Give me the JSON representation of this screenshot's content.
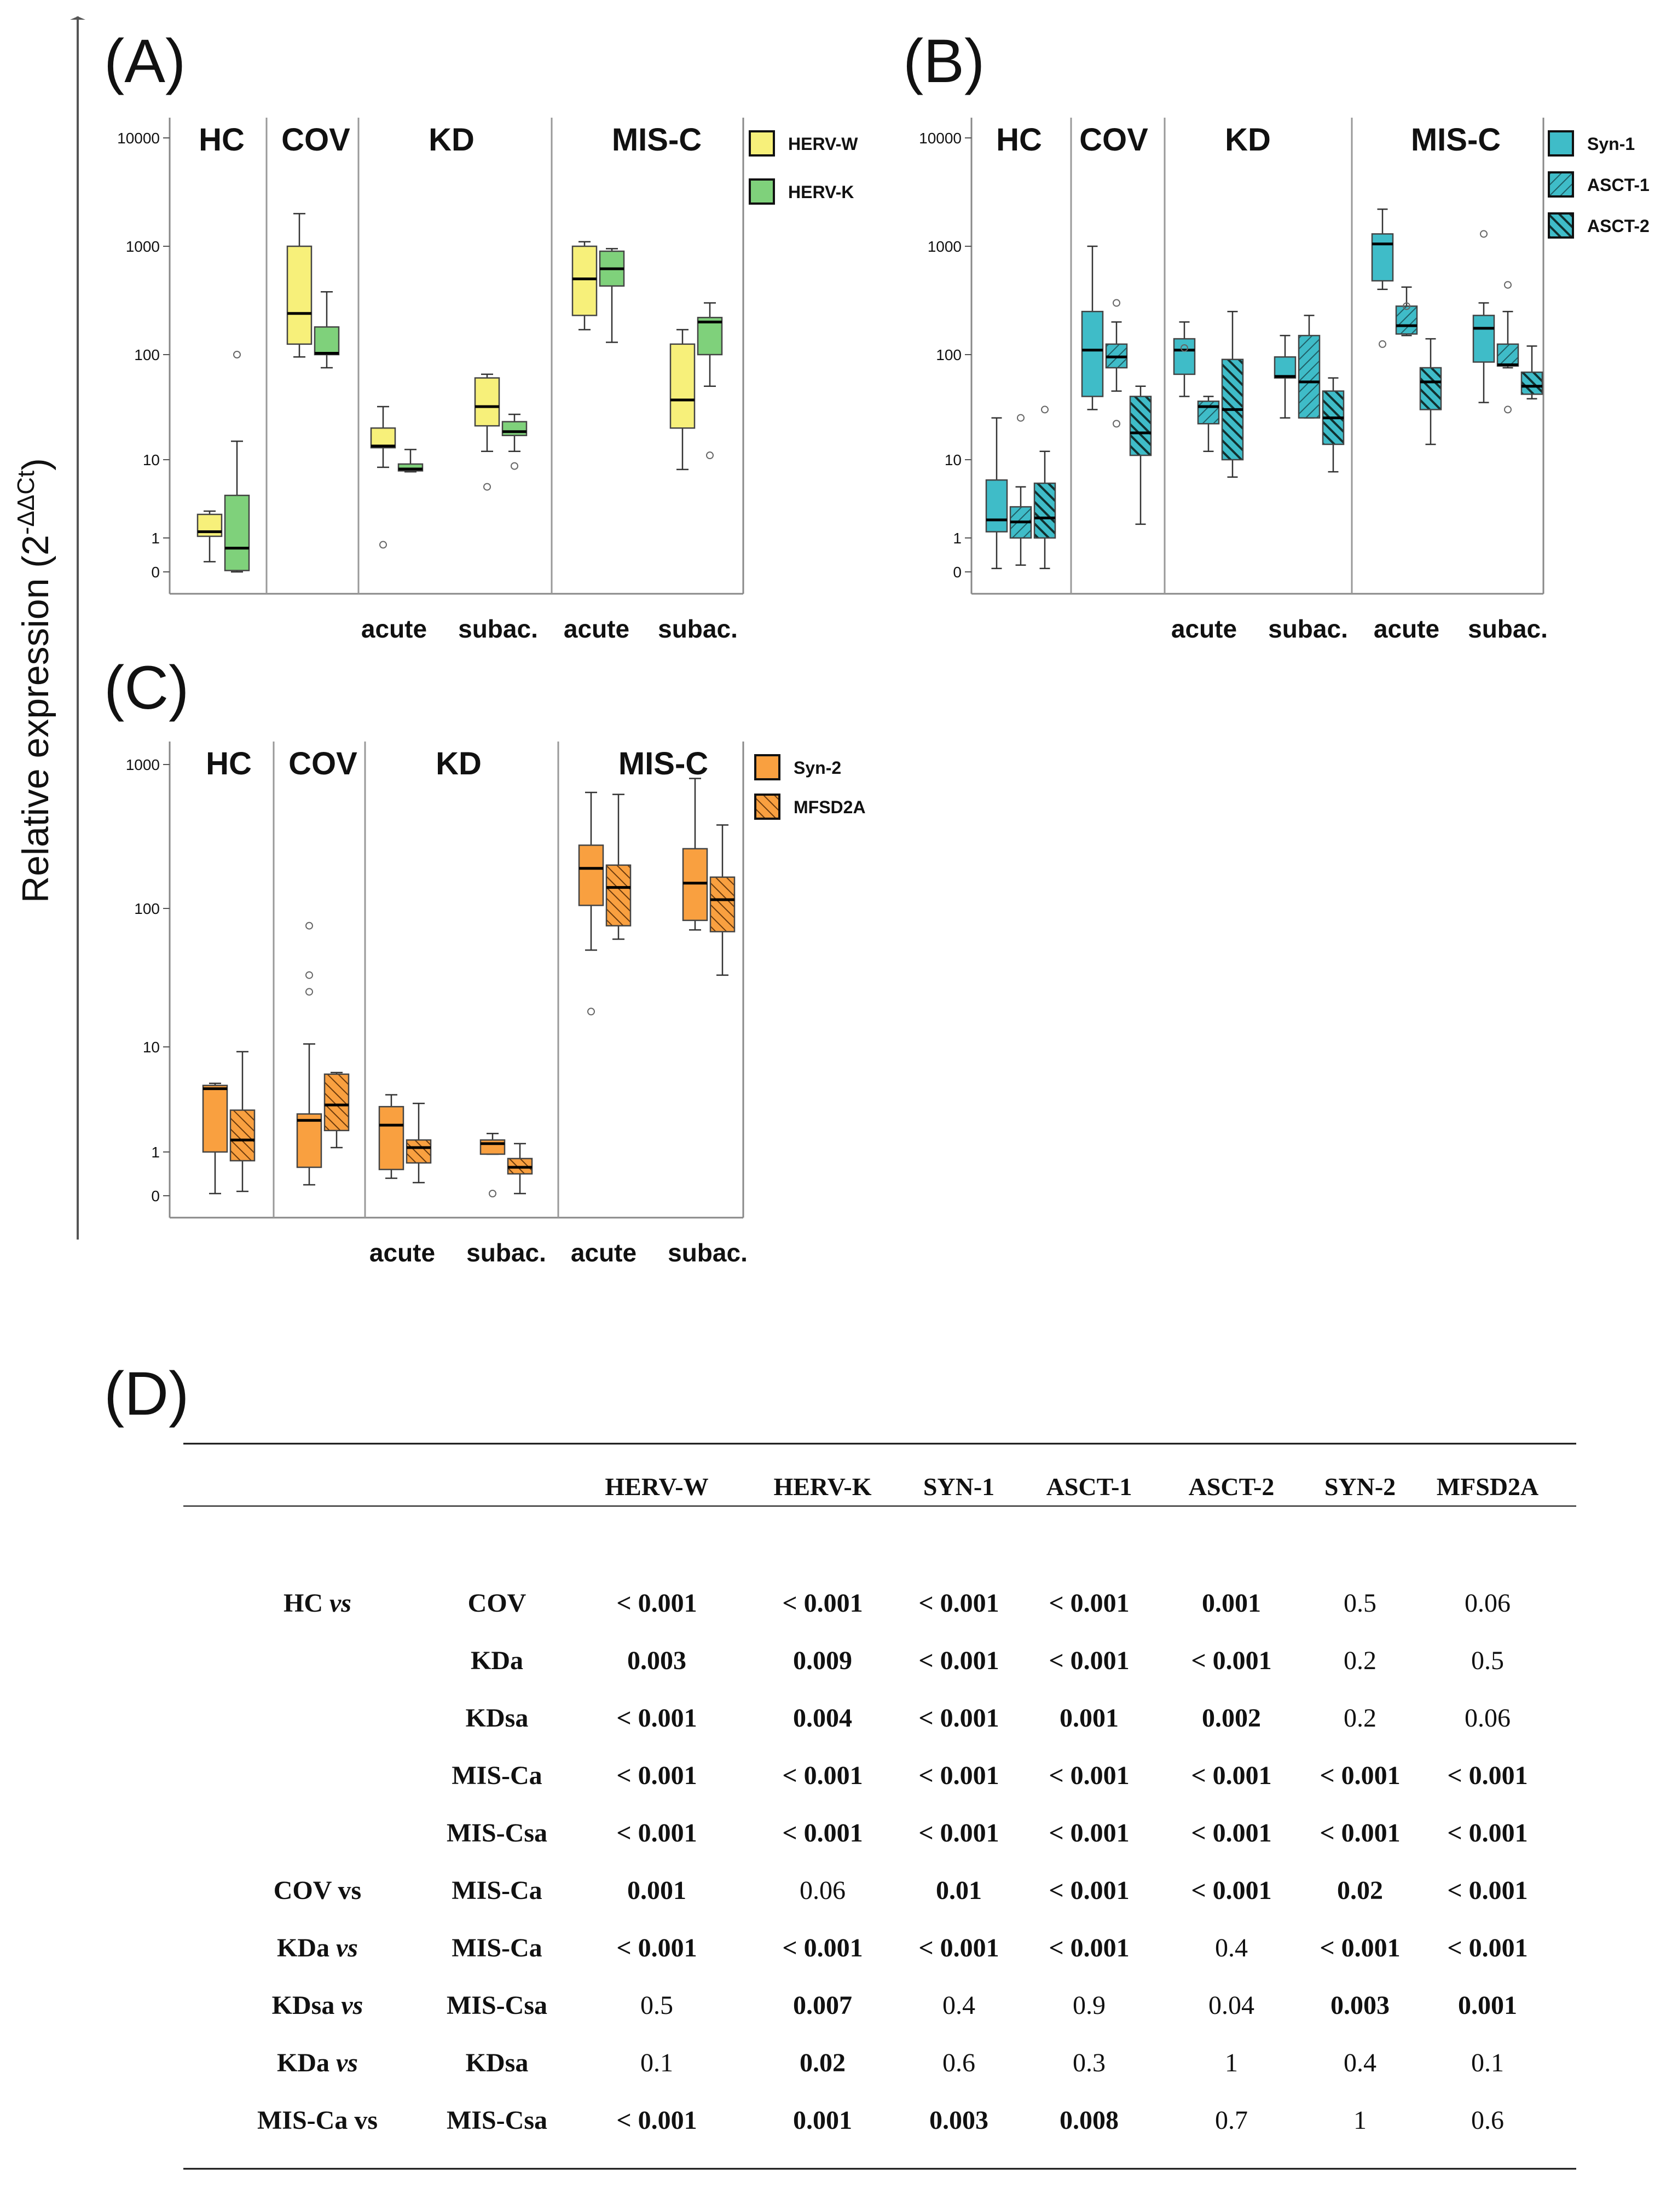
{
  "ylabel": "Relative expression (2",
  "ylabel_sup": "-ΔΔCt",
  "chart_data": [
    {
      "panel": "(A)",
      "type": "box",
      "y_scale": "log",
      "yticks": [
        "0",
        "1",
        "10",
        "100",
        "1000",
        "10000"
      ],
      "groups": [
        "HC",
        "COV",
        "KD",
        "MIS-C"
      ],
      "subgroups": [
        "acute",
        "subac.",
        "acute",
        "subac."
      ],
      "legend": [
        {
          "name": "HERV-W",
          "color": "#f7f07a",
          "pattern": "solid"
        },
        {
          "name": "HERV-K",
          "color": "#7fd17b",
          "pattern": "solid"
        }
      ],
      "boxes": [
        {
          "category": "HC",
          "series": "HERV-W",
          "min": 0.3,
          "q1": 1.05,
          "median": 1.2,
          "q3": 2.0,
          "max": 2.2,
          "outliers": []
        },
        {
          "category": "HC",
          "series": "HERV-K",
          "min": 0.02,
          "q1": 0.04,
          "median": 0.7,
          "q3": 3.5,
          "max": 15,
          "outliers": [
            100
          ]
        },
        {
          "category": "COV",
          "series": "HERV-W",
          "min": 95,
          "q1": 125,
          "median": 240,
          "q3": 1000,
          "max": 2000,
          "outliers": []
        },
        {
          "category": "COV",
          "series": "HERV-K",
          "min": 75,
          "q1": 100,
          "median": 103,
          "q3": 180,
          "max": 380,
          "outliers": []
        },
        {
          "category": "KD acute",
          "series": "HERV-W",
          "min": 8,
          "q1": 13,
          "median": 13.5,
          "q3": 20,
          "max": 32,
          "outliers": [
            0.8
          ]
        },
        {
          "category": "KD acute",
          "series": "HERV-K",
          "min": 7,
          "q1": 7.2,
          "median": 7.6,
          "q3": 8.8,
          "max": 12.5,
          "outliers": []
        },
        {
          "category": "KD subac.",
          "series": "HERV-W",
          "min": 12,
          "q1": 21,
          "median": 32,
          "q3": 60,
          "max": 65,
          "outliers": [
            4.5
          ]
        },
        {
          "category": "KD subac.",
          "series": "HERV-K",
          "min": 12,
          "q1": 17,
          "median": 18.5,
          "q3": 23,
          "max": 27,
          "outliers": [
            8.3
          ]
        },
        {
          "category": "MIS-C acute",
          "series": "HERV-W",
          "min": 170,
          "q1": 230,
          "median": 500,
          "q3": 1000,
          "max": 1100,
          "outliers": []
        },
        {
          "category": "MIS-C acute",
          "series": "HERV-K",
          "min": 130,
          "q1": 430,
          "median": 620,
          "q3": 900,
          "max": 950,
          "outliers": []
        },
        {
          "category": "MIS-C subac.",
          "series": "HERV-W",
          "min": 7.5,
          "q1": 20,
          "median": 37,
          "q3": 125,
          "max": 170,
          "outliers": []
        },
        {
          "category": "MIS-C subac.",
          "series": "HERV-K",
          "min": 50,
          "q1": 100,
          "median": 200,
          "q3": 220,
          "max": 300,
          "outliers": [
            11
          ]
        }
      ]
    },
    {
      "panel": "(B)",
      "type": "box",
      "y_scale": "log",
      "yticks": [
        "0",
        "1",
        "10",
        "100",
        "1000",
        "10000"
      ],
      "groups": [
        "HC",
        "COV",
        "KD",
        "MIS-C"
      ],
      "subgroups": [
        "acute",
        "subac.",
        "acute",
        "subac."
      ],
      "legend": [
        {
          "name": "Syn-1",
          "color": "#3fbcc8",
          "pattern": "solid"
        },
        {
          "name": "ASCT-1",
          "color": "#3fbcc8",
          "pattern": "light-hatch"
        },
        {
          "name": "ASCT-2",
          "color": "#3fbcc8",
          "pattern": "dark-hatch"
        }
      ],
      "boxes": [
        {
          "category": "HC",
          "series": "Syn-1",
          "min": 0.1,
          "q1": 1.2,
          "median": 1.7,
          "q3": 5.5,
          "max": 25,
          "outliers": []
        },
        {
          "category": "HC",
          "series": "ASCT-1",
          "min": 0.2,
          "q1": 1.0,
          "median": 1.6,
          "q3": 2.5,
          "max": 4.5,
          "outliers": [
            25
          ]
        },
        {
          "category": "HC",
          "series": "ASCT-2",
          "min": 0.1,
          "q1": 1.0,
          "median": 1.8,
          "q3": 5.0,
          "max": 12,
          "outliers": [
            30
          ]
        },
        {
          "category": "COV",
          "series": "Syn-1",
          "min": 30,
          "q1": 40,
          "median": 110,
          "q3": 250,
          "max": 1000,
          "outliers": []
        },
        {
          "category": "COV",
          "series": "ASCT-1",
          "min": 45,
          "q1": 75,
          "median": 95,
          "q3": 125,
          "max": 200,
          "outliers": [
            300,
            22
          ]
        },
        {
          "category": "COV",
          "series": "ASCT-2",
          "min": 1.5,
          "q1": 11,
          "median": 18,
          "q3": 40,
          "max": 50,
          "outliers": []
        },
        {
          "category": "KD acute",
          "series": "Syn-1",
          "min": 40,
          "q1": 65,
          "median": 110,
          "q3": 140,
          "max": 200,
          "outliers": [
            115
          ]
        },
        {
          "category": "KD acute",
          "series": "ASCT-1",
          "min": 12,
          "q1": 22,
          "median": 32,
          "q3": 36,
          "max": 40,
          "outliers": []
        },
        {
          "category": "KD acute",
          "series": "ASCT-2",
          "min": 6,
          "q1": 10,
          "median": 30,
          "q3": 90,
          "max": 250,
          "outliers": []
        },
        {
          "category": "KD subac.",
          "series": "Syn-1",
          "min": 25,
          "q1": 60,
          "median": 62,
          "q3": 95,
          "max": 150,
          "outliers": []
        },
        {
          "category": "KD subac.",
          "series": "ASCT-1",
          "min": 25,
          "q1": 25,
          "median": 55,
          "q3": 150,
          "max": 230,
          "outliers": []
        },
        {
          "category": "KD subac.",
          "series": "ASCT-2",
          "min": 7,
          "q1": 14,
          "median": 25,
          "q3": 45,
          "max": 60,
          "outliers": []
        },
        {
          "category": "MIS-C acute",
          "series": "Syn-1",
          "min": 400,
          "q1": 480,
          "median": 1050,
          "q3": 1300,
          "max": 2200,
          "outliers": [
            125
          ]
        },
        {
          "category": "MIS-C acute",
          "series": "ASCT-1",
          "min": 150,
          "q1": 155,
          "median": 185,
          "q3": 280,
          "max": 420,
          "outliers": [
            280
          ]
        },
        {
          "category": "MIS-C acute",
          "series": "ASCT-2",
          "min": 14,
          "q1": 30,
          "median": 55,
          "q3": 75,
          "max": 140,
          "outliers": []
        },
        {
          "category": "MIS-C subac.",
          "series": "Syn-1",
          "min": 35,
          "q1": 85,
          "median": 175,
          "q3": 230,
          "max": 300,
          "outliers": [
            1300
          ]
        },
        {
          "category": "MIS-C subac.",
          "series": "ASCT-1",
          "min": 75,
          "q1": 78,
          "median": 80,
          "q3": 125,
          "max": 250,
          "outliers": [
            440,
            30
          ]
        },
        {
          "category": "MIS-C subac.",
          "series": "ASCT-2",
          "min": 38,
          "q1": 42,
          "median": 50,
          "q3": 68,
          "max": 120,
          "outliers": []
        }
      ]
    },
    {
      "panel": "(C)",
      "type": "box",
      "y_scale": "log",
      "yticks": [
        "0",
        "1",
        "10",
        "100",
        "1000"
      ],
      "groups": [
        "HC",
        "COV",
        "KD",
        "MIS-C"
      ],
      "subgroups": [
        "acute",
        "subac.",
        "acute",
        "subac."
      ],
      "legend": [
        {
          "name": "Syn-2",
          "color": "#f9a040",
          "pattern": "solid"
        },
        {
          "name": "MFSD2A",
          "color": "#f9a040",
          "pattern": "dark-hatch"
        }
      ],
      "boxes": [
        {
          "category": "HC",
          "series": "Syn-2",
          "min": 0.05,
          "q1": 1.0,
          "median": 4.0,
          "q3": 4.3,
          "max": 4.5,
          "outliers": []
        },
        {
          "category": "HC",
          "series": "MFSD2A",
          "min": 0.1,
          "q1": 0.8,
          "median": 1.3,
          "q3": 2.5,
          "max": 9,
          "outliers": []
        },
        {
          "category": "COV",
          "series": "Syn-2",
          "min": 0.25,
          "q1": 0.65,
          "median": 2.0,
          "q3": 2.3,
          "max": 10.5,
          "outliers": [
            25,
            33,
            75
          ]
        },
        {
          "category": "COV",
          "series": "MFSD2A",
          "min": 1.1,
          "q1": 1.6,
          "median": 2.8,
          "q3": 5.5,
          "max": 5.7,
          "outliers": []
        },
        {
          "category": "KD acute",
          "series": "Syn-2",
          "min": 0.4,
          "q1": 0.6,
          "median": 1.8,
          "q3": 2.7,
          "max": 3.5,
          "outliers": []
        },
        {
          "category": "KD acute",
          "series": "MFSD2A",
          "min": 0.3,
          "q1": 0.75,
          "median": 1.1,
          "q3": 1.3,
          "max": 2.9,
          "outliers": []
        },
        {
          "category": "KD subac.",
          "series": "Syn-2",
          "min": 0.95,
          "q1": 0.95,
          "median": 1.2,
          "q3": 1.3,
          "max": 1.5,
          "outliers": [
            0.05
          ]
        },
        {
          "category": "KD subac.",
          "series": "MFSD2A",
          "min": 0.05,
          "q1": 0.5,
          "median": 0.65,
          "q3": 0.85,
          "max": 1.2,
          "outliers": []
        },
        {
          "category": "MIS-C acute",
          "series": "Syn-2",
          "min": 50,
          "q1": 105,
          "median": 190,
          "q3": 275,
          "max": 640,
          "outliers": [
            18
          ]
        },
        {
          "category": "MIS-C acute",
          "series": "MFSD2A",
          "min": 60,
          "q1": 75,
          "median": 140,
          "q3": 200,
          "max": 620,
          "outliers": []
        },
        {
          "category": "MIS-C subac.",
          "series": "Syn-2",
          "min": 70,
          "q1": 82,
          "median": 150,
          "q3": 260,
          "max": 800,
          "outliers": []
        },
        {
          "category": "MIS-C subac.",
          "series": "MFSD2A",
          "min": 33,
          "q1": 68,
          "median": 115,
          "q3": 165,
          "max": 380,
          "outliers": []
        }
      ]
    },
    {
      "panel": "(D)",
      "type": "table",
      "columns": [
        "HERV-W",
        "HERV-K",
        "SYN-1",
        "ASCT-1",
        "ASCT-2",
        "SYN-2",
        "MFSD2A"
      ],
      "rows": [
        {
          "g1": "HC",
          "vs": "vs",
          "g1_italic_vs": true,
          "g2": "COV",
          "values": [
            "< 0.001",
            "< 0.001",
            "< 0.001",
            "< 0.001",
            "0.001",
            "0.5",
            "0.06"
          ],
          "bold": [
            true,
            true,
            true,
            true,
            true,
            false,
            false
          ]
        },
        {
          "g1": "",
          "vs": "",
          "g1_italic_vs": false,
          "g2": "KDa",
          "values": [
            "0.003",
            "0.009",
            "< 0.001",
            "< 0.001",
            "< 0.001",
            "0.2",
            "0.5"
          ],
          "bold": [
            true,
            true,
            true,
            true,
            true,
            false,
            false
          ]
        },
        {
          "g1": "",
          "vs": "",
          "g1_italic_vs": false,
          "g2": "KDsa",
          "values": [
            "< 0.001",
            "0.004",
            "< 0.001",
            "0.001",
            "0.002",
            "0.2",
            "0.06"
          ],
          "bold": [
            true,
            true,
            true,
            true,
            true,
            false,
            false
          ]
        },
        {
          "g1": "",
          "vs": "",
          "g1_italic_vs": false,
          "g2": "MIS-Ca",
          "values": [
            "< 0.001",
            "< 0.001",
            "< 0.001",
            "< 0.001",
            "< 0.001",
            "< 0.001",
            "< 0.001"
          ],
          "bold": [
            true,
            true,
            true,
            true,
            true,
            true,
            true
          ]
        },
        {
          "g1": "",
          "vs": "",
          "g1_italic_vs": false,
          "g2": "MIS-Csa",
          "values": [
            "< 0.001",
            "< 0.001",
            "< 0.001",
            "< 0.001",
            "< 0.001",
            "< 0.001",
            "< 0.001"
          ],
          "bold": [
            true,
            true,
            true,
            true,
            true,
            true,
            true
          ]
        },
        {
          "g1": "COV",
          "vs": "vs",
          "g1_italic_vs": false,
          "g2": "MIS-Ca",
          "values": [
            "0.001",
            "0.06",
            "0.01",
            "< 0.001",
            "< 0.001",
            "0.02",
            "< 0.001"
          ],
          "bold": [
            true,
            false,
            true,
            true,
            true,
            true,
            true
          ]
        },
        {
          "g1": "KDa",
          "vs": "vs",
          "g1_italic_vs": true,
          "g2": "MIS-Ca",
          "values": [
            "< 0.001",
            "< 0.001",
            "< 0.001",
            "< 0.001",
            "0.4",
            "< 0.001",
            "< 0.001"
          ],
          "bold": [
            true,
            true,
            true,
            true,
            false,
            true,
            true
          ]
        },
        {
          "g1": "KDsa",
          "vs": "vs",
          "g1_italic_vs": true,
          "g2": "MIS-Csa",
          "values": [
            "0.5",
            "0.007",
            "0.4",
            "0.9",
            "0.04",
            "0.003",
            "0.001"
          ],
          "bold": [
            false,
            true,
            false,
            false,
            false,
            true,
            true
          ]
        },
        {
          "g1": "KDa",
          "vs": "vs",
          "g1_italic_vs": true,
          "g2": "KDsa",
          "values": [
            "0.1",
            "0.02",
            "0.6",
            "0.3",
            "1",
            "0.4",
            "0.1"
          ],
          "bold": [
            false,
            true,
            false,
            false,
            false,
            false,
            false
          ]
        },
        {
          "g1": "MIS-Ca",
          "vs": "vs",
          "g1_italic_vs": false,
          "g2": "MIS-Csa",
          "values": [
            "< 0.001",
            "0.001",
            "0.003",
            "0.008",
            "0.7",
            "1",
            "0.6"
          ],
          "bold": [
            true,
            true,
            true,
            true,
            false,
            false,
            false
          ]
        }
      ]
    }
  ]
}
